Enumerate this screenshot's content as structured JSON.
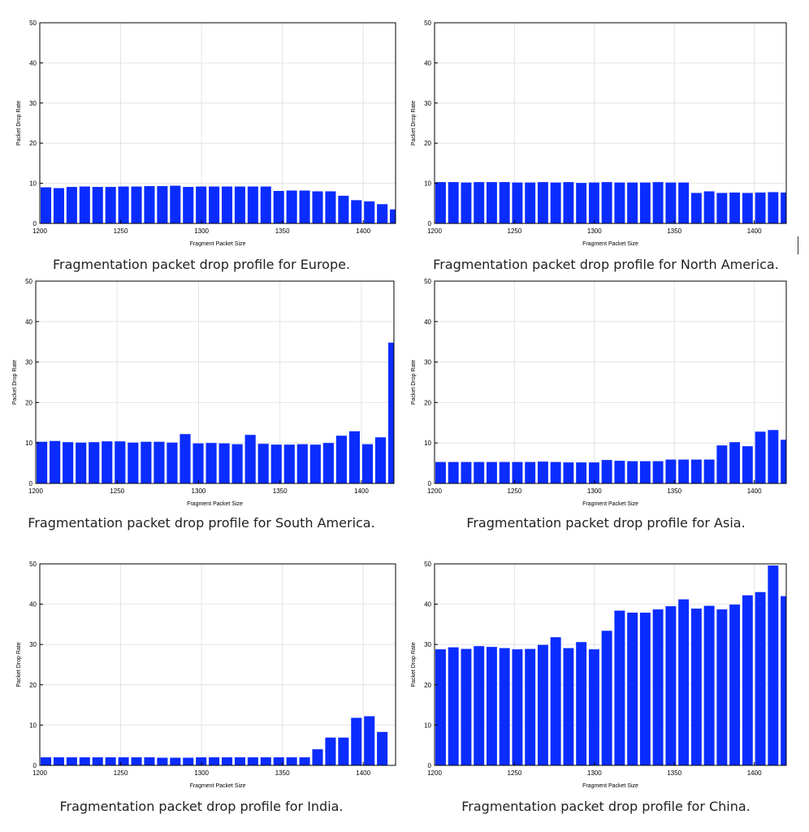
{
  "colors": {
    "bar": "#0a2cff",
    "grid": "#e4e4e4",
    "axis": "#000000"
  },
  "chart_data": [
    {
      "type": "bar",
      "caption": "Fragmentation packet drop profile for Europe.",
      "xlabel": "Fragment Packet Size",
      "ylabel": "Packet Drop Rate",
      "xlim": [
        1200,
        1420
      ],
      "ylim": [
        0,
        50
      ],
      "xticks": [
        1200,
        1250,
        1300,
        1350,
        1400
      ],
      "yticks": [
        0,
        10,
        20,
        30,
        40,
        50
      ],
      "grid": true,
      "x": [
        1200,
        1208,
        1216,
        1224,
        1232,
        1240,
        1248,
        1256,
        1264,
        1272,
        1280,
        1288,
        1296,
        1304,
        1312,
        1320,
        1328,
        1336,
        1344,
        1352,
        1360,
        1368,
        1376,
        1384,
        1392,
        1400,
        1408,
        1416
      ],
      "values": [
        9.0,
        8.8,
        9.1,
        9.2,
        9.1,
        9.1,
        9.2,
        9.2,
        9.3,
        9.3,
        9.4,
        9.1,
        9.2,
        9.2,
        9.2,
        9.2,
        9.2,
        9.2,
        8.1,
        8.2,
        8.2,
        8.0,
        8.0,
        6.9,
        5.8,
        5.5,
        4.8,
        3.5
      ]
    },
    {
      "type": "bar",
      "caption": "Fragmentation packet drop profile for North America.",
      "xlabel": "Fragment Packet Size",
      "ylabel": "Packet Drop Rate",
      "xlim": [
        1200,
        1420
      ],
      "ylim": [
        0,
        50
      ],
      "xticks": [
        1200,
        1250,
        1300,
        1350,
        1400
      ],
      "yticks": [
        0,
        10,
        20,
        30,
        40,
        50
      ],
      "grid": true,
      "x": [
        1200,
        1208,
        1216,
        1224,
        1232,
        1240,
        1248,
        1256,
        1264,
        1272,
        1280,
        1288,
        1296,
        1304,
        1312,
        1320,
        1328,
        1336,
        1344,
        1352,
        1360,
        1368,
        1376,
        1384,
        1392,
        1400,
        1408,
        1416
      ],
      "values": [
        10.3,
        10.3,
        10.2,
        10.3,
        10.3,
        10.3,
        10.2,
        10.2,
        10.3,
        10.2,
        10.3,
        10.1,
        10.2,
        10.3,
        10.2,
        10.2,
        10.2,
        10.3,
        10.2,
        10.2,
        7.6,
        8.0,
        7.6,
        7.7,
        7.6,
        7.7,
        7.8,
        7.7
      ]
    },
    {
      "type": "bar",
      "caption": "Fragmentation packet drop profile for South America.",
      "xlabel": "Fragment Packet Size",
      "ylabel": "Packet Drop Rate",
      "xlim": [
        1200,
        1420
      ],
      "ylim": [
        0,
        50
      ],
      "xticks": [
        1200,
        1250,
        1300,
        1350,
        1400
      ],
      "yticks": [
        0,
        10,
        20,
        30,
        40,
        50
      ],
      "grid": true,
      "x": [
        1200,
        1208,
        1216,
        1224,
        1232,
        1240,
        1248,
        1256,
        1264,
        1272,
        1280,
        1288,
        1296,
        1304,
        1312,
        1320,
        1328,
        1336,
        1344,
        1352,
        1360,
        1368,
        1376,
        1384,
        1392,
        1400,
        1408,
        1416
      ],
      "values": [
        10.3,
        10.5,
        10.2,
        10.1,
        10.2,
        10.4,
        10.4,
        10.1,
        10.3,
        10.3,
        10.1,
        12.2,
        9.9,
        10.0,
        9.9,
        9.7,
        12.0,
        9.8,
        9.6,
        9.6,
        9.7,
        9.6,
        10.0,
        11.8,
        12.9,
        9.7,
        11.4,
        34.8
      ]
    },
    {
      "type": "bar",
      "caption": "Fragmentation packet drop profile for Asia.",
      "xlabel": "Fragment Packet Size",
      "ylabel": "Packet Drop Rate",
      "xlim": [
        1200,
        1420
      ],
      "ylim": [
        0,
        50
      ],
      "xticks": [
        1200,
        1250,
        1300,
        1350,
        1400
      ],
      "yticks": [
        0,
        10,
        20,
        30,
        40,
        50
      ],
      "grid": true,
      "x": [
        1200,
        1208,
        1216,
        1224,
        1232,
        1240,
        1248,
        1256,
        1264,
        1272,
        1280,
        1288,
        1296,
        1304,
        1312,
        1320,
        1328,
        1336,
        1344,
        1352,
        1360,
        1368,
        1376,
        1384,
        1392,
        1400,
        1408,
        1416
      ],
      "values": [
        5.3,
        5.3,
        5.3,
        5.3,
        5.3,
        5.3,
        5.3,
        5.3,
        5.4,
        5.3,
        5.2,
        5.2,
        5.2,
        5.8,
        5.6,
        5.5,
        5.5,
        5.5,
        5.9,
        5.9,
        5.9,
        5.9,
        9.4,
        10.2,
        9.2,
        12.8,
        13.2,
        10.8
      ]
    },
    {
      "type": "bar",
      "caption": "Fragmentation packet drop profile for India.",
      "xlabel": "Fragment Packet Size",
      "ylabel": "Packet Drop Rate",
      "xlim": [
        1200,
        1420
      ],
      "ylim": [
        0,
        50
      ],
      "xticks": [
        1200,
        1250,
        1300,
        1350,
        1400
      ],
      "yticks": [
        0,
        10,
        20,
        30,
        40,
        50
      ],
      "grid": true,
      "x": [
        1200,
        1208,
        1216,
        1224,
        1232,
        1240,
        1248,
        1256,
        1264,
        1272,
        1280,
        1288,
        1296,
        1304,
        1312,
        1320,
        1328,
        1336,
        1344,
        1352,
        1360,
        1368,
        1376,
        1384,
        1392,
        1400,
        1408,
        1416
      ],
      "values": [
        2.0,
        2.0,
        2.0,
        2.0,
        2.0,
        2.0,
        2.0,
        2.0,
        2.0,
        1.9,
        1.9,
        1.9,
        2.0,
        2.0,
        2.0,
        2.0,
        2.0,
        2.0,
        2.0,
        2.0,
        2.0,
        4.0,
        6.9,
        6.9,
        11.8,
        12.2,
        8.3,
        0
      ]
    },
    {
      "type": "bar",
      "caption": "Fragmentation packet drop profile for China.",
      "xlabel": "Fragment Packet Size",
      "ylabel": "Packet Drop Rate",
      "xlim": [
        1200,
        1420
      ],
      "ylim": [
        0,
        50
      ],
      "xticks": [
        1200,
        1250,
        1300,
        1350,
        1400
      ],
      "yticks": [
        0,
        10,
        20,
        30,
        40,
        50
      ],
      "grid": true,
      "x": [
        1200,
        1208,
        1216,
        1224,
        1232,
        1240,
        1248,
        1256,
        1264,
        1272,
        1280,
        1288,
        1296,
        1304,
        1312,
        1320,
        1328,
        1336,
        1344,
        1352,
        1360,
        1368,
        1376,
        1384,
        1392,
        1400,
        1408,
        1416
      ],
      "values": [
        28.8,
        29.3,
        28.9,
        29.6,
        29.4,
        29.1,
        28.8,
        28.9,
        29.9,
        31.8,
        29.1,
        30.6,
        28.8,
        33.4,
        38.4,
        37.9,
        37.9,
        38.7,
        39.5,
        41.2,
        38.9,
        39.6,
        38.7,
        39.9,
        42.2,
        43.0,
        49.6,
        42.0
      ]
    }
  ]
}
